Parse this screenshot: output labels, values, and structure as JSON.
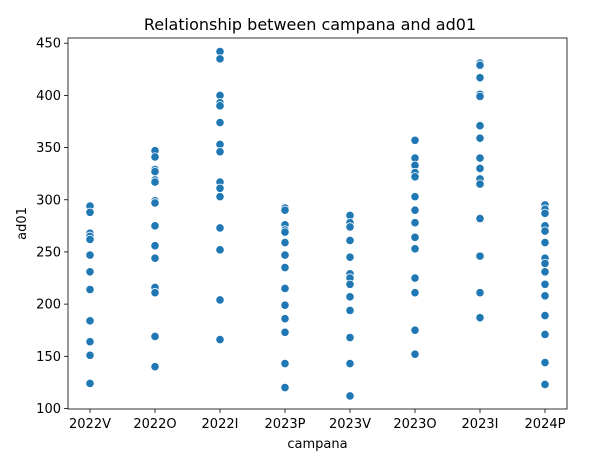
{
  "chart_data": {
    "type": "scatter",
    "title": "Relationship between campana and ad01",
    "xlabel": "campana",
    "ylabel": "ad01",
    "categories": [
      "2022V",
      "2022O",
      "2022I",
      "2023P",
      "2023V",
      "2023O",
      "2023I",
      "2024P"
    ],
    "ylim": [
      99.5,
      455
    ],
    "yticks": [
      100,
      150,
      200,
      250,
      300,
      350,
      400,
      450
    ],
    "grid": false,
    "legend": "none",
    "point_color": "#1f77b4",
    "series": [
      {
        "points": [
          {
            "x": "2022V",
            "y": 294
          },
          {
            "x": "2022V",
            "y": 288
          },
          {
            "x": "2022V",
            "y": 268
          },
          {
            "x": "2022V",
            "y": 265
          },
          {
            "x": "2022V",
            "y": 262
          },
          {
            "x": "2022V",
            "y": 247
          },
          {
            "x": "2022V",
            "y": 231
          },
          {
            "x": "2022V",
            "y": 214
          },
          {
            "x": "2022V",
            "y": 184
          },
          {
            "x": "2022V",
            "y": 164
          },
          {
            "x": "2022V",
            "y": 151
          },
          {
            "x": "2022V",
            "y": 124
          },
          {
            "x": "2022O",
            "y": 347
          },
          {
            "x": "2022O",
            "y": 341
          },
          {
            "x": "2022O",
            "y": 329
          },
          {
            "x": "2022O",
            "y": 327
          },
          {
            "x": "2022O",
            "y": 319
          },
          {
            "x": "2022O",
            "y": 317
          },
          {
            "x": "2022O",
            "y": 299
          },
          {
            "x": "2022O",
            "y": 297
          },
          {
            "x": "2022O",
            "y": 275
          },
          {
            "x": "2022O",
            "y": 256
          },
          {
            "x": "2022O",
            "y": 244
          },
          {
            "x": "2022O",
            "y": 216
          },
          {
            "x": "2022O",
            "y": 211
          },
          {
            "x": "2022O",
            "y": 169
          },
          {
            "x": "2022O",
            "y": 140
          },
          {
            "x": "2022I",
            "y": 442
          },
          {
            "x": "2022I",
            "y": 435
          },
          {
            "x": "2022I",
            "y": 400
          },
          {
            "x": "2022I",
            "y": 393
          },
          {
            "x": "2022I",
            "y": 390
          },
          {
            "x": "2022I",
            "y": 374
          },
          {
            "x": "2022I",
            "y": 353
          },
          {
            "x": "2022I",
            "y": 346
          },
          {
            "x": "2022I",
            "y": 317
          },
          {
            "x": "2022I",
            "y": 311
          },
          {
            "x": "2022I",
            "y": 303
          },
          {
            "x": "2022I",
            "y": 273
          },
          {
            "x": "2022I",
            "y": 252
          },
          {
            "x": "2022I",
            "y": 204
          },
          {
            "x": "2022I",
            "y": 166
          },
          {
            "x": "2023P",
            "y": 292
          },
          {
            "x": "2023P",
            "y": 290
          },
          {
            "x": "2023P",
            "y": 276
          },
          {
            "x": "2023P",
            "y": 271
          },
          {
            "x": "2023P",
            "y": 269
          },
          {
            "x": "2023P",
            "y": 259
          },
          {
            "x": "2023P",
            "y": 247
          },
          {
            "x": "2023P",
            "y": 235
          },
          {
            "x": "2023P",
            "y": 215
          },
          {
            "x": "2023P",
            "y": 199
          },
          {
            "x": "2023P",
            "y": 186
          },
          {
            "x": "2023P",
            "y": 173
          },
          {
            "x": "2023P",
            "y": 143
          },
          {
            "x": "2023P",
            "y": 120
          },
          {
            "x": "2023V",
            "y": 285
          },
          {
            "x": "2023V",
            "y": 278
          },
          {
            "x": "2023V",
            "y": 274
          },
          {
            "x": "2023V",
            "y": 261
          },
          {
            "x": "2023V",
            "y": 245
          },
          {
            "x": "2023V",
            "y": 229
          },
          {
            "x": "2023V",
            "y": 225
          },
          {
            "x": "2023V",
            "y": 219
          },
          {
            "x": "2023V",
            "y": 207
          },
          {
            "x": "2023V",
            "y": 194
          },
          {
            "x": "2023V",
            "y": 168
          },
          {
            "x": "2023V",
            "y": 143
          },
          {
            "x": "2023V",
            "y": 112
          },
          {
            "x": "2023O",
            "y": 357
          },
          {
            "x": "2023O",
            "y": 340
          },
          {
            "x": "2023O",
            "y": 333
          },
          {
            "x": "2023O",
            "y": 326
          },
          {
            "x": "2023O",
            "y": 322
          },
          {
            "x": "2023O",
            "y": 303
          },
          {
            "x": "2023O",
            "y": 290
          },
          {
            "x": "2023O",
            "y": 278
          },
          {
            "x": "2023O",
            "y": 264
          },
          {
            "x": "2023O",
            "y": 253
          },
          {
            "x": "2023O",
            "y": 225
          },
          {
            "x": "2023O",
            "y": 211
          },
          {
            "x": "2023O",
            "y": 175
          },
          {
            "x": "2023O",
            "y": 152
          },
          {
            "x": "2023I",
            "y": 431
          },
          {
            "x": "2023I",
            "y": 429
          },
          {
            "x": "2023I",
            "y": 417
          },
          {
            "x": "2023I",
            "y": 401
          },
          {
            "x": "2023I",
            "y": 399
          },
          {
            "x": "2023I",
            "y": 371
          },
          {
            "x": "2023I",
            "y": 359
          },
          {
            "x": "2023I",
            "y": 340
          },
          {
            "x": "2023I",
            "y": 330
          },
          {
            "x": "2023I",
            "y": 320
          },
          {
            "x": "2023I",
            "y": 315
          },
          {
            "x": "2023I",
            "y": 282
          },
          {
            "x": "2023I",
            "y": 246
          },
          {
            "x": "2023I",
            "y": 211
          },
          {
            "x": "2023I",
            "y": 187
          },
          {
            "x": "2024P",
            "y": 295
          },
          {
            "x": "2024P",
            "y": 291
          },
          {
            "x": "2024P",
            "y": 287
          },
          {
            "x": "2024P",
            "y": 275
          },
          {
            "x": "2024P",
            "y": 270
          },
          {
            "x": "2024P",
            "y": 259
          },
          {
            "x": "2024P",
            "y": 244
          },
          {
            "x": "2024P",
            "y": 239
          },
          {
            "x": "2024P",
            "y": 231
          },
          {
            "x": "2024P",
            "y": 219
          },
          {
            "x": "2024P",
            "y": 208
          },
          {
            "x": "2024P",
            "y": 189
          },
          {
            "x": "2024P",
            "y": 171
          },
          {
            "x": "2024P",
            "y": 144
          },
          {
            "x": "2024P",
            "y": 123
          }
        ]
      }
    ]
  }
}
